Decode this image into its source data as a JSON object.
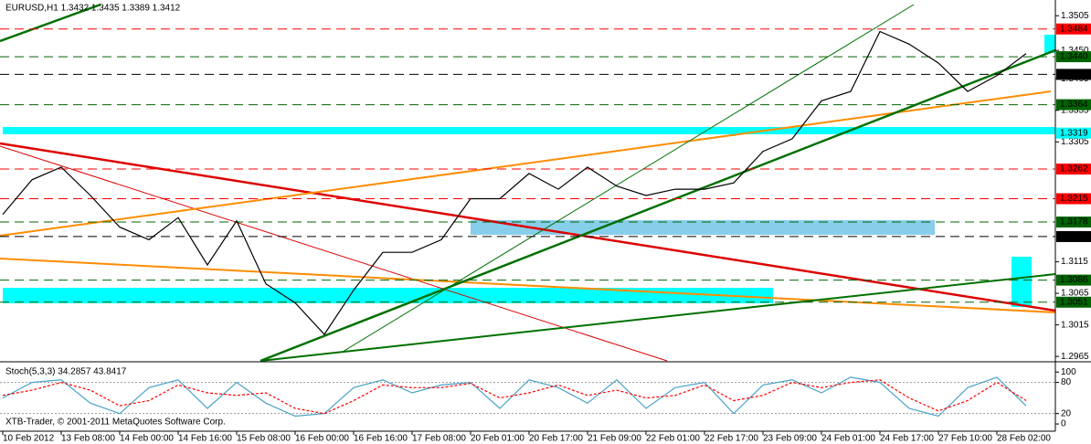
{
  "chart_data": [
    {
      "type": "line",
      "title": "EURUSD,H1  1.3432 1.3435 1.3389 1.3412",
      "ylim": [
        1.2958,
        1.3527
      ],
      "yticks": [
        1.3505,
        {
          "value": 1.345,
          "label": "1.3450"
        },
        1.3405,
        1.3355,
        1.3305,
        1.3115,
        1.3065,
        1.3015,
        1.2965
      ],
      "series": [
        {
          "color": "#000000",
          "values": [
            1.319,
            1.3245,
            1.3265,
            1.322,
            1.317,
            1.315,
            1.3185,
            1.311,
            1.318,
            1.308,
            1.305,
            1.3,
            1.307,
            1.313,
            1.313,
            1.315,
            1.3215,
            1.3215,
            1.3255,
            1.323,
            1.3265,
            1.3235,
            1.322,
            1.323,
            1.323,
            1.324,
            1.329,
            1.331,
            1.337,
            1.3385,
            1.348,
            1.346,
            1.343,
            1.3385,
            1.341,
            1.3445
          ]
        }
      ],
      "levels": [
        {
          "value": 1.3484,
          "color": "#ff0000"
        },
        {
          "value": 1.344,
          "label": "1.3440",
          "color": "#006400"
        },
        {
          "value": 1.3412,
          "color": "#000000"
        },
        {
          "value": 1.3364,
          "color": "#006400"
        },
        {
          "value": 1.3319,
          "color": "#00ffff"
        },
        {
          "value": 1.3262,
          "color": "#ff0000"
        },
        {
          "value": 1.3215,
          "color": "#ff0000"
        },
        {
          "value": 1.3178,
          "color": "#006400"
        },
        {
          "value": 1.3155,
          "color": "#000000"
        },
        {
          "value": 1.3086,
          "color": "#006400"
        },
        {
          "value": 1.3051,
          "color": "#006400"
        }
      ]
    },
    {
      "type": "line",
      "title": "Stoch(5,3,3) 34.2857 43.8417",
      "annotation": "XTB-Trader, © 2001-2011 MetaQuotes Software Corp.",
      "categories": [
        "10 Feb 2012",
        null,
        "13 Feb 08:00",
        null,
        "14 Feb 00:00",
        null,
        "14 Feb 16:00",
        null,
        "15 Feb 08:00",
        null,
        "16 Feb 00:00",
        null,
        "16 Feb 16:00",
        null,
        "17 Feb 08:00",
        null,
        "20 Feb 01:00",
        null,
        "20 Feb 17:00",
        null,
        "21 Feb 09:00",
        null,
        "22 Feb 01:00",
        null,
        "22 Feb 17:00",
        null,
        "23 Feb 09:00",
        null,
        "24 Feb 01:00",
        null,
        "24 Feb 17:00",
        null,
        "27 Feb 10:00",
        null,
        "28 Feb 02:00",
        null
      ],
      "ylim": [
        -14,
        118
      ],
      "yticks": [
        100,
        80,
        20,
        0
      ],
      "series": [
        {
          "color": "#4aa3c8",
          "values": [
            50,
            80,
            85,
            40,
            20,
            70,
            85,
            30,
            80,
            40,
            15,
            20,
            70,
            85,
            60,
            75,
            80,
            30,
            85,
            70,
            40,
            85,
            30,
            70,
            80,
            20,
            75,
            85,
            60,
            90,
            80,
            30,
            15,
            70,
            90,
            35
          ]
        },
        {
          "color": "#ff0000",
          "values": [
            55,
            65,
            80,
            65,
            35,
            45,
            75,
            60,
            55,
            60,
            30,
            20,
            45,
            75,
            70,
            70,
            78,
            50,
            60,
            75,
            55,
            65,
            50,
            55,
            75,
            45,
            55,
            80,
            70,
            80,
            85,
            50,
            25,
            45,
            80,
            45
          ]
        }
      ]
    }
  ]
}
